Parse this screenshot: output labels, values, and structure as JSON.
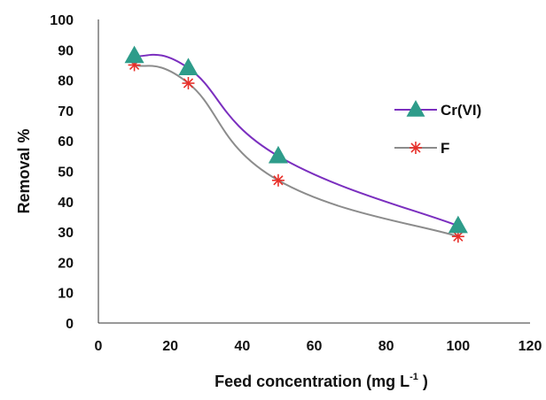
{
  "chart_data": {
    "type": "line",
    "title": "",
    "xlabel": "Feed concentration (mg L",
    "xlabel_superscript": "-1",
    "xlabel_suffix": " )",
    "ylabel": "Removal %",
    "xlim": [
      0,
      120
    ],
    "ylim": [
      0,
      100
    ],
    "x_ticks": [
      "0",
      "20",
      "40",
      "60",
      "80",
      "100",
      "120"
    ],
    "y_ticks": [
      "0",
      "10",
      "20",
      "30",
      "40",
      "50",
      "60",
      "70",
      "80",
      "90",
      "100"
    ],
    "grid": false,
    "legend_position": "right",
    "x": [
      10,
      25,
      50,
      100
    ],
    "series": [
      {
        "name": "Cr(VI)",
        "values": [
          88,
          84,
          55,
          32
        ],
        "marker": "triangle",
        "line_color": "#7b2fbf",
        "marker_color": "#2e9c8a"
      },
      {
        "name": "F",
        "values": [
          85,
          79,
          47,
          28.5
        ],
        "marker": "asterisk",
        "line_color": "#8c8c8c",
        "marker_color": "#e8302a"
      }
    ]
  }
}
